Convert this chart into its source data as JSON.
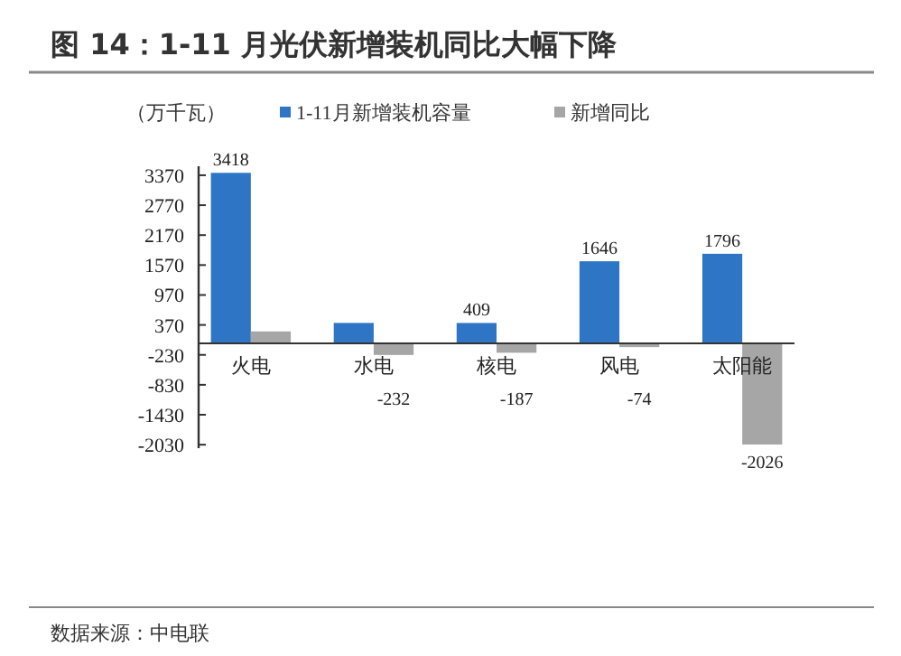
{
  "chart_data": {
    "type": "bar",
    "title": "图 14：1-11 月光伏新增装机同比大幅下降",
    "ylabel": "（万千瓦）",
    "categories": [
      "火电",
      "水电",
      "核电",
      "风电",
      "太阳能"
    ],
    "series": [
      {
        "name": "1-11月新增装机容量",
        "color": "#2e75c5",
        "values": [
          3418,
          410,
          409,
          1646,
          1796
        ],
        "value_labels": [
          "3418",
          null,
          "409",
          "1646",
          "1796"
        ]
      },
      {
        "name": "新增同比",
        "color": "#a6a6a6",
        "values": [
          240,
          -232,
          -187,
          -74,
          -2026
        ],
        "value_labels": [
          null,
          "-232",
          "-187",
          "-74",
          "-2026"
        ]
      }
    ],
    "ylim": [
      -2100,
      3550
    ],
    "yticks": [
      -2030,
      -1430,
      -830,
      -230,
      370,
      970,
      1570,
      2170,
      2770,
      3370
    ],
    "grid": false,
    "legend": "top",
    "annotations": [
      "数据来源：中电联"
    ]
  }
}
